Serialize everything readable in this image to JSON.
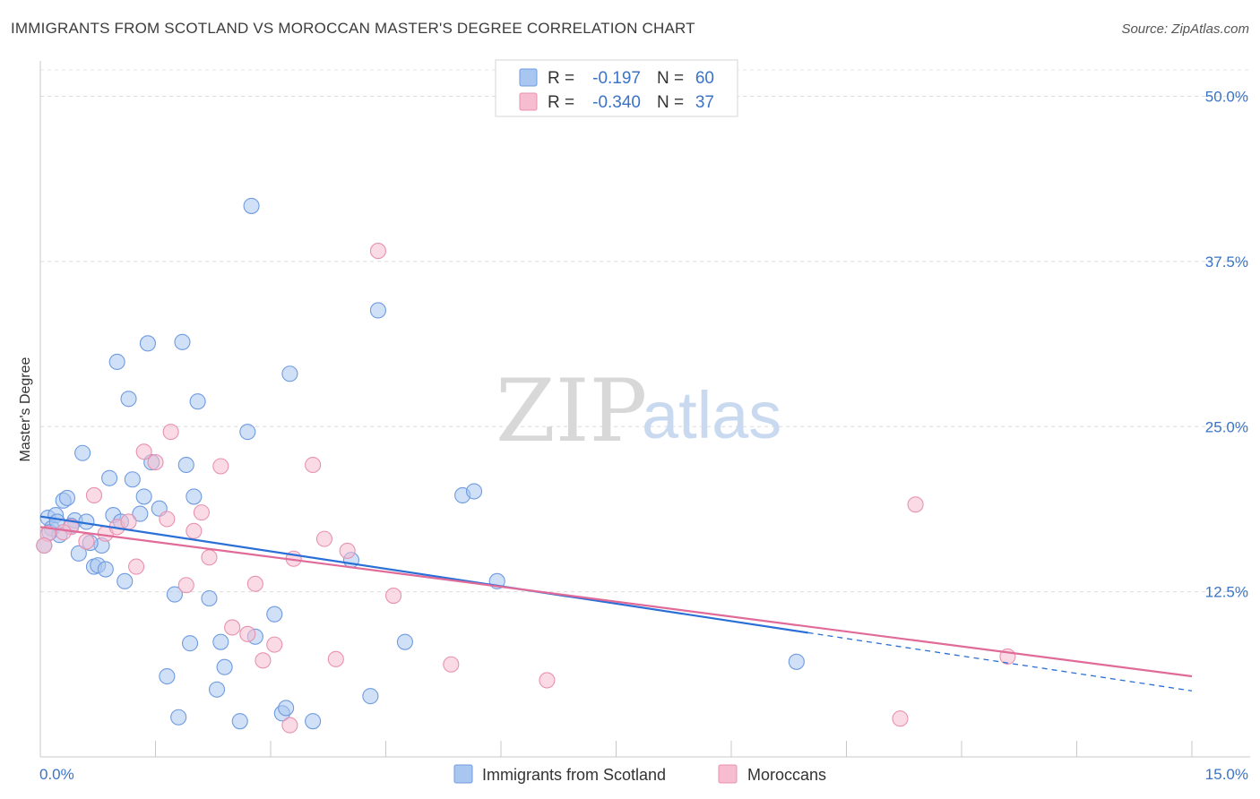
{
  "header": {
    "title": "IMMIGRANTS FROM SCOTLAND VS MOROCCAN MASTER'S DEGREE CORRELATION CHART",
    "source": "Source: ZipAtlas.com"
  },
  "watermark": {
    "zip": "ZIP",
    "atlas": "atlas"
  },
  "legend": {
    "rows": [
      {
        "r_label": "R =",
        "r_value": "-0.197",
        "n_label": "N =",
        "n_value": "60",
        "color": "#a9c6f0",
        "stroke": "#6f9be0"
      },
      {
        "r_label": "R =",
        "r_value": "-0.340",
        "n_label": "N =",
        "n_value": "37",
        "color": "#f6bdd0",
        "stroke": "#e891b0"
      }
    ]
  },
  "bottom_legend": {
    "items": [
      {
        "label": "Immigrants from Scotland",
        "color": "#a9c6f0",
        "stroke": "#6f9be0"
      },
      {
        "label": "Moroccans",
        "color": "#f6bdd0",
        "stroke": "#e891b0"
      }
    ]
  },
  "chart_data": {
    "type": "scatter",
    "title": "IMMIGRANTS FROM SCOTLAND VS MOROCCAN MASTER'S DEGREE CORRELATION CHART",
    "xlabel": "",
    "ylabel": "Master's Degree",
    "xlim": [
      0,
      15
    ],
    "ylim": [
      0,
      52
    ],
    "x_tick_labels": [
      "0.0%",
      "15.0%"
    ],
    "y_ticks": [
      12.5,
      25.0,
      37.5,
      50.0
    ],
    "y_tick_labels": [
      "12.5%",
      "25.0%",
      "37.5%",
      "50.0%"
    ],
    "grid": true,
    "series": [
      {
        "name": "Immigrants from Scotland",
        "color": "#6f9be0",
        "fill": "#a9c6f0",
        "line_color": "#2a6fd6",
        "trend": {
          "x0": 0.0,
          "y0": 18.2,
          "x1": 10.0,
          "y1": 9.4,
          "dash_to_x": 15.0,
          "dash_to_y": 5.0
        },
        "points": [
          [
            0.1,
            18.1
          ],
          [
            0.15,
            17.3
          ],
          [
            0.2,
            18.3
          ],
          [
            0.25,
            16.8
          ],
          [
            0.3,
            19.4
          ],
          [
            0.35,
            19.6
          ],
          [
            0.45,
            17.9
          ],
          [
            0.5,
            15.4
          ],
          [
            0.55,
            23.0
          ],
          [
            0.6,
            17.8
          ],
          [
            0.7,
            14.4
          ],
          [
            0.75,
            14.5
          ],
          [
            0.8,
            16.0
          ],
          [
            0.85,
            14.2
          ],
          [
            0.9,
            21.1
          ],
          [
            0.95,
            18.3
          ],
          [
            1.0,
            29.9
          ],
          [
            1.1,
            13.3
          ],
          [
            1.15,
            27.1
          ],
          [
            1.2,
            21.0
          ],
          [
            1.3,
            18.4
          ],
          [
            1.35,
            19.7
          ],
          [
            1.4,
            31.3
          ],
          [
            1.45,
            22.3
          ],
          [
            1.55,
            18.8
          ],
          [
            1.65,
            6.1
          ],
          [
            1.75,
            12.3
          ],
          [
            1.8,
            3.0
          ],
          [
            1.85,
            31.4
          ],
          [
            1.9,
            22.1
          ],
          [
            1.95,
            8.6
          ],
          [
            2.0,
            19.7
          ],
          [
            2.05,
            26.9
          ],
          [
            2.2,
            12.0
          ],
          [
            2.3,
            5.1
          ],
          [
            2.35,
            8.7
          ],
          [
            2.4,
            6.8
          ],
          [
            2.6,
            2.7
          ],
          [
            2.7,
            24.6
          ],
          [
            2.75,
            41.7
          ],
          [
            2.8,
            9.1
          ],
          [
            3.05,
            10.8
          ],
          [
            3.15,
            3.3
          ],
          [
            3.2,
            3.7
          ],
          [
            3.25,
            29.0
          ],
          [
            3.55,
            2.7
          ],
          [
            4.05,
            14.9
          ],
          [
            4.3,
            4.6
          ],
          [
            4.4,
            33.8
          ],
          [
            4.75,
            8.7
          ],
          [
            5.5,
            19.8
          ],
          [
            5.65,
            20.1
          ],
          [
            5.95,
            13.3
          ],
          [
            9.85,
            7.2
          ],
          [
            0.05,
            16.0
          ],
          [
            0.12,
            17.0
          ],
          [
            0.4,
            17.5
          ],
          [
            0.65,
            16.2
          ],
          [
            0.22,
            17.8
          ],
          [
            1.05,
            17.8
          ]
        ]
      },
      {
        "name": "Moroccans",
        "color": "#e891b0",
        "fill": "#f6bdd0",
        "line_color": "#e06a98",
        "trend": {
          "x0": 0.0,
          "y0": 17.4,
          "x1": 15.0,
          "y1": 6.1
        },
        "points": [
          [
            0.1,
            16.9
          ],
          [
            0.4,
            17.4
          ],
          [
            0.6,
            16.3
          ],
          [
            0.7,
            19.8
          ],
          [
            0.85,
            16.9
          ],
          [
            1.0,
            17.4
          ],
          [
            1.15,
            17.8
          ],
          [
            1.25,
            14.4
          ],
          [
            1.35,
            23.1
          ],
          [
            1.5,
            22.3
          ],
          [
            1.65,
            18.0
          ],
          [
            1.7,
            24.6
          ],
          [
            1.9,
            13.0
          ],
          [
            2.0,
            17.1
          ],
          [
            2.1,
            18.5
          ],
          [
            2.2,
            15.1
          ],
          [
            2.35,
            22.0
          ],
          [
            2.5,
            9.8
          ],
          [
            2.7,
            9.3
          ],
          [
            2.8,
            13.1
          ],
          [
            2.9,
            7.3
          ],
          [
            3.05,
            8.5
          ],
          [
            3.25,
            2.4
          ],
          [
            3.3,
            15.0
          ],
          [
            3.55,
            22.1
          ],
          [
            3.7,
            16.5
          ],
          [
            3.85,
            7.4
          ],
          [
            4.0,
            15.6
          ],
          [
            4.4,
            38.3
          ],
          [
            4.6,
            12.2
          ],
          [
            5.35,
            7.0
          ],
          [
            6.6,
            5.8
          ],
          [
            11.2,
            2.9
          ],
          [
            11.4,
            19.1
          ],
          [
            12.6,
            7.6
          ],
          [
            0.05,
            16.0
          ],
          [
            0.3,
            17.0
          ]
        ]
      }
    ]
  }
}
